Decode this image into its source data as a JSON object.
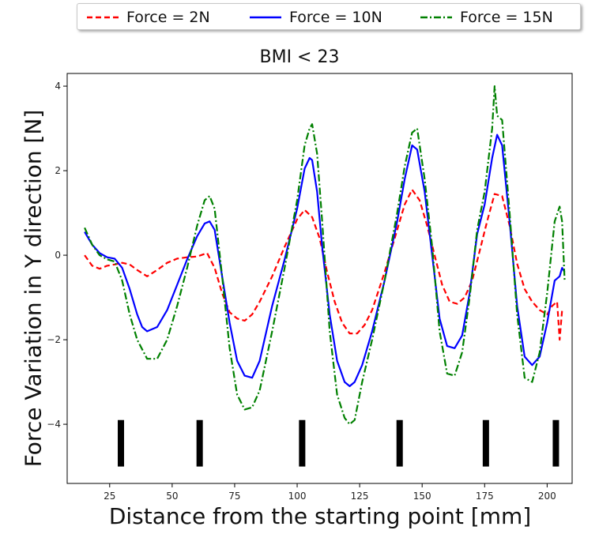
{
  "chart_data": {
    "type": "line",
    "title": "BMI < 23",
    "xlabel": "Distance from the starting point [mm]",
    "ylabel": "Force Variation in Y direction [N]",
    "xlim": [
      8,
      210
    ],
    "ylim": [
      -5.4,
      4.3
    ],
    "xticks": [
      25,
      50,
      75,
      100,
      125,
      150,
      175,
      200
    ],
    "yticks": [
      -4,
      -2,
      0,
      2,
      4
    ],
    "grid": false,
    "legend_position": "top-outside",
    "series": [
      {
        "name": "Force = 2N",
        "color": "#ff0000",
        "dash": "dashed",
        "x": [
          15,
          18,
          21,
          24,
          27,
          30,
          33,
          36,
          40,
          44,
          48,
          52,
          56,
          60,
          64,
          67,
          70,
          73,
          76,
          79,
          82,
          85,
          90,
          95,
          100,
          103,
          106,
          109,
          112,
          115,
          118,
          121,
          124,
          127,
          130,
          135,
          140,
          143,
          146,
          149,
          152,
          155,
          158,
          161,
          164,
          167,
          170,
          173,
          176,
          179,
          182,
          185,
          188,
          191,
          194,
          197,
          200,
          202,
          204,
          205,
          206
        ],
        "y": [
          0.0,
          -0.25,
          -0.32,
          -0.25,
          -0.22,
          -0.18,
          -0.22,
          -0.35,
          -0.5,
          -0.35,
          -0.18,
          -0.08,
          -0.05,
          -0.03,
          0.05,
          -0.3,
          -0.9,
          -1.35,
          -1.5,
          -1.55,
          -1.4,
          -1.1,
          -0.5,
          0.2,
          0.85,
          1.07,
          0.9,
          0.4,
          -0.4,
          -1.1,
          -1.6,
          -1.85,
          -1.85,
          -1.65,
          -1.3,
          -0.4,
          0.6,
          1.2,
          1.55,
          1.3,
          0.7,
          0.0,
          -0.7,
          -1.1,
          -1.15,
          -1.0,
          -0.6,
          0.1,
          0.8,
          1.45,
          1.4,
          0.7,
          -0.2,
          -0.8,
          -1.1,
          -1.3,
          -1.4,
          -1.2,
          -1.1,
          -2.0,
          -1.3
        ]
      },
      {
        "name": "Force = 10N",
        "color": "#0000ff",
        "dash": "solid",
        "x": [
          15,
          18,
          21,
          24,
          27,
          30,
          33,
          36,
          38,
          40,
          44,
          48,
          52,
          56,
          60,
          63,
          65,
          67,
          70,
          73,
          76,
          79,
          82,
          85,
          90,
          95,
          100,
          103,
          105,
          106,
          108,
          110,
          113,
          116,
          119,
          121,
          123,
          126,
          130,
          135,
          140,
          143,
          146,
          148,
          151,
          154,
          157,
          160,
          163,
          166,
          169,
          172,
          175,
          178,
          180,
          182,
          185,
          188,
          191,
          194,
          197,
          200,
          203,
          205,
          206,
          207
        ],
        "y": [
          0.55,
          0.25,
          0.05,
          -0.05,
          -0.08,
          -0.3,
          -0.8,
          -1.4,
          -1.7,
          -1.8,
          -1.7,
          -1.3,
          -0.7,
          -0.1,
          0.45,
          0.75,
          0.8,
          0.6,
          -0.5,
          -1.6,
          -2.5,
          -2.85,
          -2.9,
          -2.5,
          -1.2,
          -0.1,
          1.1,
          2.05,
          2.3,
          2.25,
          1.5,
          0.2,
          -1.4,
          -2.5,
          -3.0,
          -3.1,
          -3.0,
          -2.6,
          -1.8,
          -0.6,
          0.8,
          1.8,
          2.6,
          2.5,
          1.5,
          0.0,
          -1.5,
          -2.15,
          -2.2,
          -1.9,
          -0.9,
          0.5,
          1.2,
          2.3,
          2.85,
          2.6,
          0.8,
          -1.2,
          -2.4,
          -2.6,
          -2.4,
          -1.6,
          -0.6,
          -0.5,
          -0.3,
          -0.4
        ]
      },
      {
        "name": "Force = 15N",
        "color": "#008000",
        "dash": "dashdot",
        "x": [
          15,
          18,
          21,
          24,
          27,
          30,
          33,
          36,
          40,
          44,
          48,
          52,
          56,
          60,
          63,
          65,
          67,
          70,
          73,
          76,
          79,
          82,
          85,
          90,
          95,
          100,
          103,
          105,
          106,
          108,
          110,
          113,
          116,
          119,
          121,
          123,
          126,
          130,
          135,
          140,
          143,
          146,
          148,
          151,
          154,
          157,
          160,
          163,
          166,
          169,
          172,
          175,
          178,
          179,
          180,
          182,
          185,
          188,
          191,
          194,
          197,
          200,
          203,
          205,
          206,
          207
        ],
        "y": [
          0.65,
          0.25,
          0.0,
          -0.1,
          -0.15,
          -0.6,
          -1.4,
          -2.0,
          -2.45,
          -2.45,
          -2.0,
          -1.2,
          -0.3,
          0.7,
          1.3,
          1.4,
          1.1,
          -0.5,
          -2.2,
          -3.3,
          -3.65,
          -3.6,
          -3.2,
          -1.8,
          -0.3,
          1.3,
          2.6,
          3.0,
          3.1,
          2.4,
          0.8,
          -1.8,
          -3.3,
          -3.85,
          -4.0,
          -3.9,
          -3.0,
          -2.0,
          -0.6,
          1.0,
          2.1,
          2.9,
          3.0,
          1.8,
          0.2,
          -1.8,
          -2.8,
          -2.85,
          -2.3,
          -1.0,
          0.6,
          1.5,
          3.0,
          4.0,
          3.3,
          3.2,
          1.0,
          -1.4,
          -2.9,
          -3.0,
          -2.3,
          -0.9,
          0.8,
          1.15,
          0.8,
          -0.6
        ]
      }
    ],
    "markers": {
      "x": [
        29.5,
        61,
        102,
        141,
        175.5,
        203.5
      ],
      "y_bottom": -5.0,
      "y_top": -3.9,
      "color": "#000000"
    }
  }
}
